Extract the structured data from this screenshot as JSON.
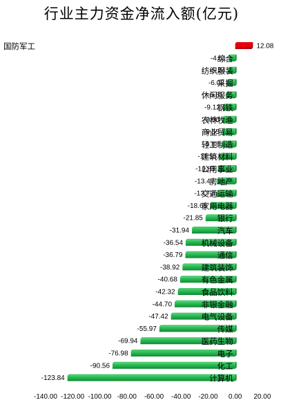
{
  "chart_data": {
    "type": "bar",
    "orientation": "horizontal",
    "title": "行业主力资金净流入额(亿元)",
    "xlabel": "",
    "ylabel": "",
    "xlim": [
      -140,
      20
    ],
    "xticks": [
      -140,
      -120,
      -100,
      -80,
      -60,
      -40,
      -20,
      0,
      20
    ],
    "xtick_labels": [
      "-140.00",
      "-120.00",
      "-100.00",
      "-80.00",
      "-60.00",
      "-40.00",
      "-20.00",
      "0.00",
      "20.00"
    ],
    "grid": false,
    "legend": "none",
    "categories": [
      "国防军工",
      "综合",
      "纺织服装",
      "采掘",
      "休闲服务",
      "钢铁",
      "农林牧渔",
      "商业贸易",
      "轻工制造",
      "建筑材料",
      "公用事业",
      "房地产",
      "交通运输",
      "家用电器",
      "银行",
      "汽车",
      "机械设备",
      "通信",
      "建筑装饰",
      "有色金属",
      "食品饮料",
      "非银金融",
      "电气设备",
      "传媒",
      "医药生物",
      "电子",
      "化工",
      "计算机"
    ],
    "values": [
      12.08,
      -4.61,
      -5.24,
      -6.08,
      -6.81,
      -9.12,
      -9.5,
      -9.55,
      -9.88,
      -11.55,
      -12.83,
      -13.47,
      -13.72,
      -18.65,
      -21.85,
      -31.94,
      -36.54,
      -36.79,
      -38.92,
      -40.68,
      -42.32,
      -44.7,
      -47.42,
      -55.97,
      -69.94,
      -76.98,
      -90.56,
      -123.84
    ],
    "value_labels": [
      "12.08",
      "-4.61",
      "-5.24",
      "-6.08",
      "-6.81",
      "-9.12",
      "-9.50",
      "-9.55",
      "-9.88",
      "-11.55",
      "-12.83",
      "-13.47",
      "-13.72",
      "-18.65",
      "-21.85",
      "-31.94",
      "-36.54",
      "-36.79",
      "-38.92",
      "-40.68",
      "-42.32",
      "-44.70",
      "-47.42",
      "-55.97",
      "-69.94",
      "-76.98",
      "-90.56",
      "-123.84"
    ],
    "colors": {
      "positive": "#e8000d",
      "positive_dark": "#a80008",
      "negative": "#1fb04a",
      "negative_light": "#43c868",
      "negative_dark": "#138a35"
    }
  }
}
